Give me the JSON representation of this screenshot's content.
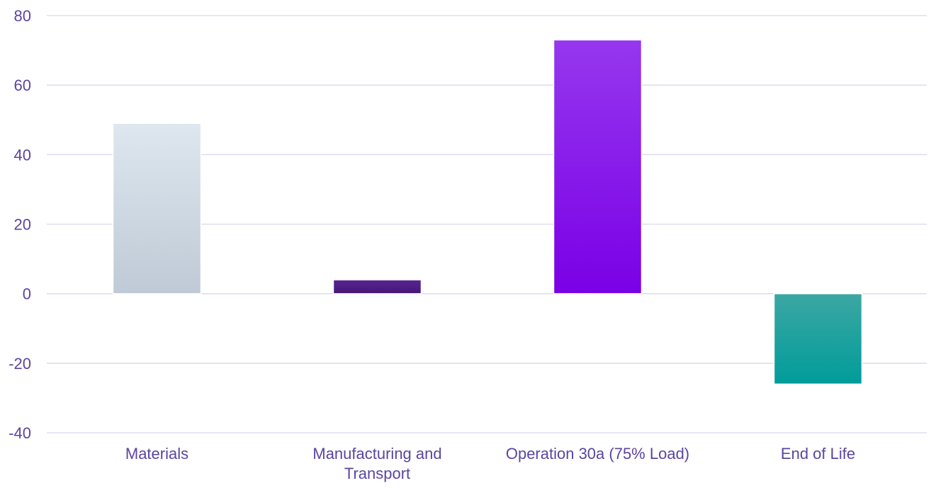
{
  "chart_data": {
    "type": "bar",
    "title": "",
    "xlabel": "",
    "ylabel": "",
    "categories": [
      [
        "Materials"
      ],
      [
        "Manufacturing and",
        "Transport"
      ],
      [
        "Operation 30a (75% Load)"
      ],
      [
        "End of Life"
      ]
    ],
    "values": [
      49,
      4,
      73,
      -26
    ],
    "ylim": [
      -40,
      80
    ],
    "yticks": [
      80,
      60,
      40,
      20,
      0,
      -20,
      -40
    ],
    "grid": true,
    "legend": "none",
    "colors": {
      "text": "#5B45A0",
      "grid": "#DCD6EE",
      "bars": [
        [
          "#DEE7EF",
          "#BFCAD6"
        ],
        [
          "#5A2592",
          "#451777"
        ],
        [
          "#9637EE",
          "#7A00E6"
        ],
        [
          "#3CA7A3",
          "#009C9A"
        ]
      ]
    }
  }
}
